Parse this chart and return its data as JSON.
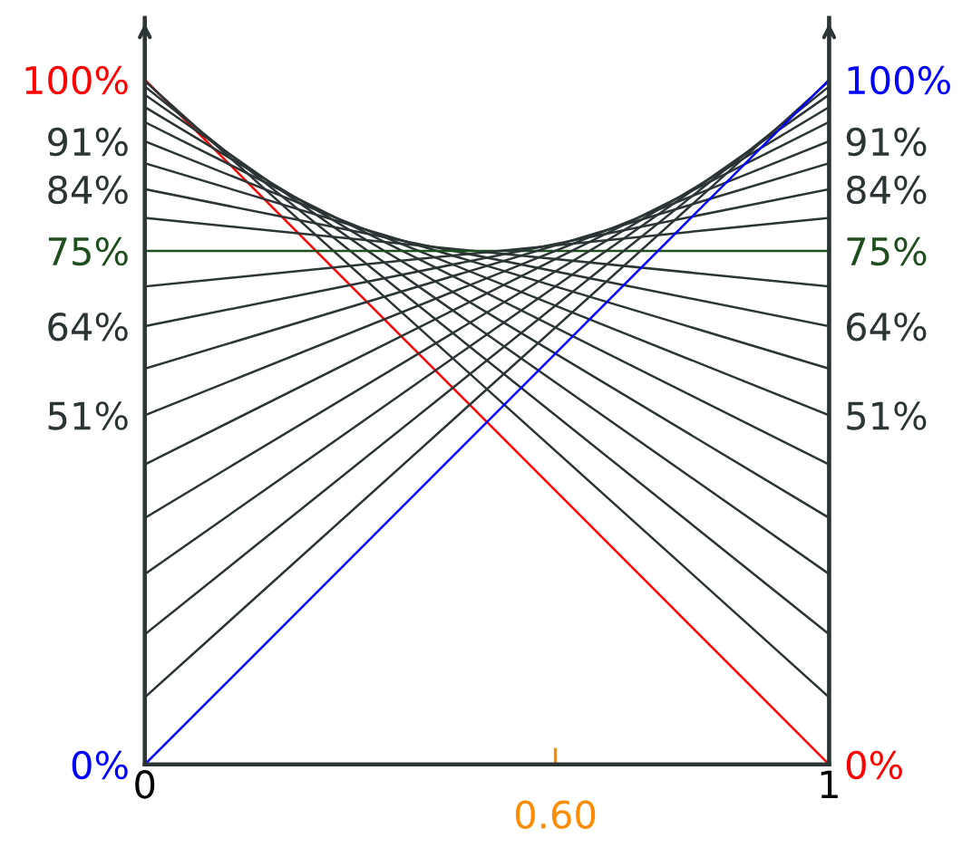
{
  "chart_data": {
    "type": "line",
    "x": [
      0,
      1
    ],
    "xlim": [
      0,
      1
    ],
    "xticks": [
      0,
      1
    ],
    "ylim": [
      0,
      109
    ],
    "yticks": [
      {
        "value": 0,
        "label": "0%"
      },
      {
        "value": 51,
        "label": "51%"
      },
      {
        "value": 64,
        "label": "64%"
      },
      {
        "value": 75,
        "label": "75%"
      },
      {
        "value": 84,
        "label": "84%"
      },
      {
        "value": 91,
        "label": "91%"
      },
      {
        "value": 100,
        "label": "100%"
      }
    ],
    "y2lim": [
      0,
      109
    ],
    "y2ticks": [
      {
        "value": 0,
        "label": "0%"
      },
      {
        "value": 51,
        "label": "51%"
      },
      {
        "value": 64,
        "label": "64%"
      },
      {
        "value": 75,
        "label": "75%"
      },
      {
        "value": 84,
        "label": "84%"
      },
      {
        "value": 91,
        "label": "91%"
      },
      {
        "value": 100,
        "label": "100%"
      }
    ],
    "series": [
      {
        "color": "#ff0000",
        "values": [
          100,
          0
        ]
      },
      {
        "color": "#2b3535",
        "values": [
          99.8,
          9.8
        ]
      },
      {
        "color": "#2b3535",
        "values": [
          99,
          19
        ]
      },
      {
        "color": "#2b3535",
        "values": [
          97.8,
          27.8
        ]
      },
      {
        "color": "#2b3535",
        "values": [
          96,
          36
        ]
      },
      {
        "color": "#2b3535",
        "values": [
          93.8,
          43.8
        ]
      },
      {
        "color": "#2b3535",
        "values": [
          91,
          51
        ]
      },
      {
        "color": "#2b3535",
        "values": [
          87.8,
          57.8
        ]
      },
      {
        "color": "#2b3535",
        "values": [
          84,
          64
        ]
      },
      {
        "color": "#2b3535",
        "values": [
          79.8,
          69.8
        ]
      },
      {
        "color": "#1f4f1f",
        "values": [
          75,
          75
        ]
      },
      {
        "color": "#2b3535",
        "values": [
          69.8,
          79.8
        ]
      },
      {
        "color": "#2b3535",
        "values": [
          64,
          84
        ]
      },
      {
        "color": "#2b3535",
        "values": [
          57.8,
          87.8
        ]
      },
      {
        "color": "#2b3535",
        "values": [
          51,
          91
        ]
      },
      {
        "color": "#2b3535",
        "values": [
          43.8,
          93.8
        ]
      },
      {
        "color": "#2b3535",
        "values": [
          36,
          96
        ]
      },
      {
        "color": "#2b3535",
        "values": [
          27.8,
          97.8
        ]
      },
      {
        "color": "#2b3535",
        "values": [
          19,
          99
        ]
      },
      {
        "color": "#2b3535",
        "values": [
          9.8,
          99.8
        ]
      },
      {
        "color": "#0000ff",
        "values": [
          0,
          100
        ]
      }
    ],
    "ref_lines": [
      {
        "axis": "x",
        "value": 0.6,
        "label": "0.60",
        "color": "#ff8c00"
      }
    ],
    "grid": false,
    "legend": false,
    "marker": "none",
    "line_style": "solid"
  }
}
